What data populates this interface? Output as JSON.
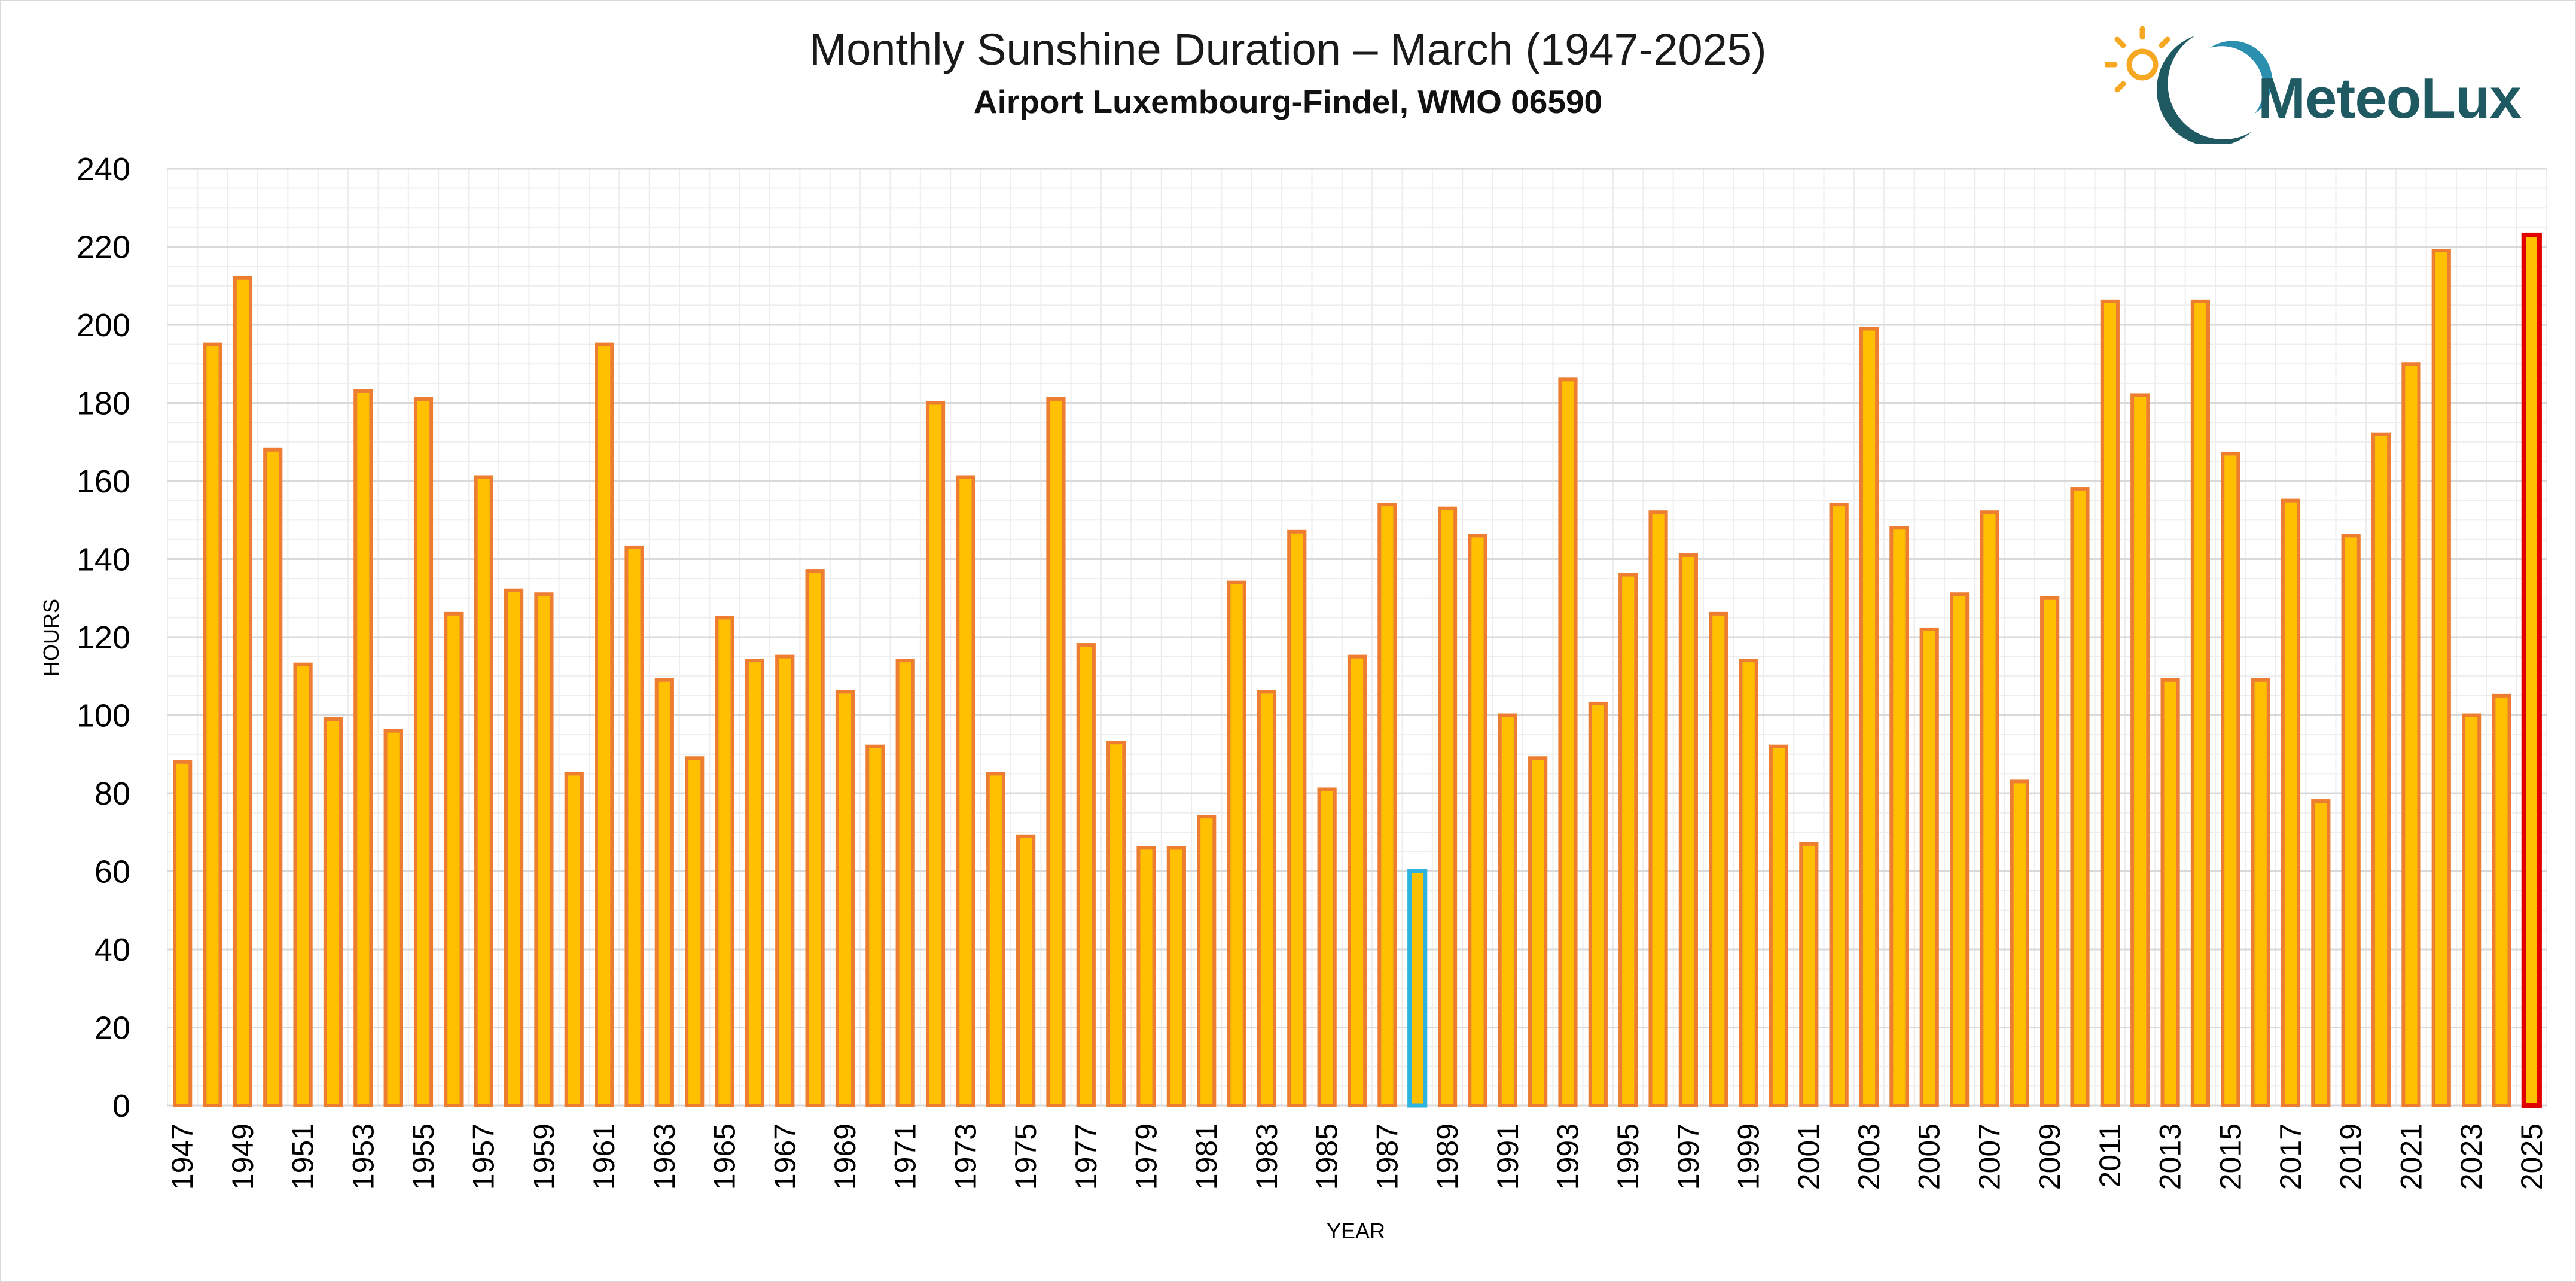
{
  "header": {
    "title": "Monthly Sunshine Duration – March (1947-2025)",
    "subtitle": "Airport Luxembourg-Findel, WMO 06590",
    "logo_text": "MeteoLux"
  },
  "colors": {
    "bar_fill": "#FFC000",
    "bar_stroke": "#ED7D31",
    "min_bar_stroke": "#2EB2E0",
    "max_bar_stroke": "#E00000",
    "grid": "#D9D9D9",
    "logo_dark": "#1F5A63",
    "logo_sun": "#F7A823"
  },
  "chart_data": {
    "type": "bar",
    "title": "Monthly Sunshine Duration – March (1947-2025)",
    "subtitle": "Airport Luxembourg-Findel, WMO 06590",
    "xlabel": "YEAR",
    "ylabel": "HOURS",
    "ylim": [
      0,
      240
    ],
    "yticks": [
      0,
      20,
      40,
      60,
      80,
      100,
      120,
      140,
      160,
      180,
      200,
      220,
      240
    ],
    "grid": true,
    "legend": "none",
    "categories": [
      1947,
      1948,
      1949,
      1950,
      1951,
      1952,
      1953,
      1954,
      1955,
      1956,
      1957,
      1958,
      1959,
      1960,
      1961,
      1962,
      1963,
      1964,
      1965,
      1966,
      1967,
      1968,
      1969,
      1970,
      1971,
      1972,
      1973,
      1974,
      1975,
      1976,
      1977,
      1978,
      1979,
      1980,
      1981,
      1982,
      1983,
      1984,
      1985,
      1986,
      1987,
      1988,
      1989,
      1990,
      1991,
      1992,
      1993,
      1994,
      1995,
      1996,
      1997,
      1998,
      1999,
      2000,
      2001,
      2002,
      2003,
      2004,
      2005,
      2006,
      2007,
      2008,
      2009,
      2010,
      2011,
      2012,
      2013,
      2014,
      2015,
      2016,
      2017,
      2018,
      2019,
      2020,
      2021,
      2022,
      2023,
      2024,
      2025
    ],
    "values": [
      88,
      195,
      212,
      168,
      113,
      99,
      183,
      96,
      181,
      126,
      161,
      132,
      131,
      85,
      195,
      143,
      109,
      89,
      125,
      114,
      115,
      137,
      106,
      92,
      114,
      180,
      161,
      85,
      69,
      181,
      118,
      93,
      66,
      66,
      74,
      134,
      106,
      147,
      81,
      115,
      154,
      60,
      153,
      146,
      100,
      89,
      186,
      103,
      136,
      152,
      141,
      126,
      114,
      92,
      67,
      154,
      199,
      148,
      122,
      131,
      152,
      83,
      130,
      158,
      206,
      182,
      109,
      206,
      167,
      109,
      155,
      78,
      146,
      172,
      190,
      219,
      100,
      105,
      223
    ],
    "highlight_min_year": 1988,
    "highlight_max_year": 2025
  }
}
